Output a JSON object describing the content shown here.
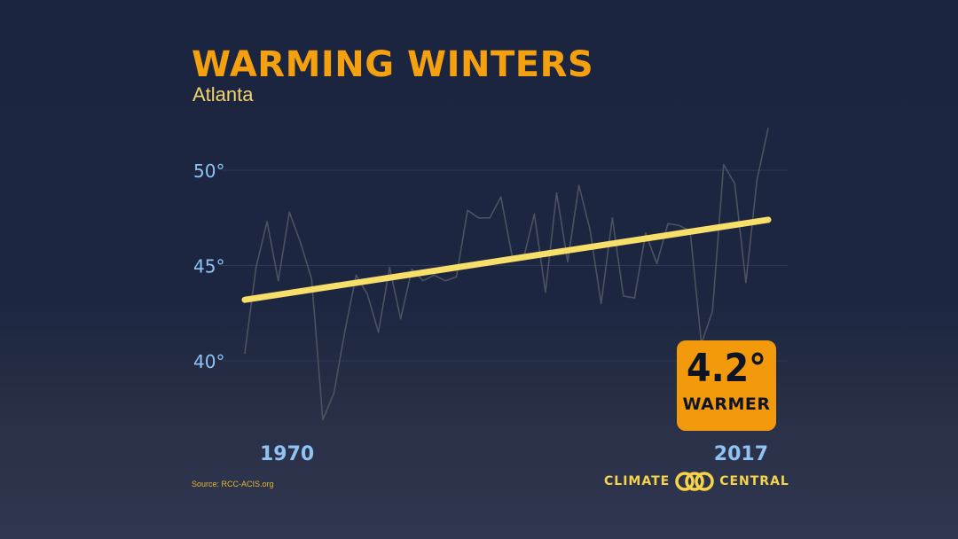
{
  "header": {
    "title": "WARMING WINTERS",
    "subtitle": "Atlanta"
  },
  "badge": {
    "value": "4.2°",
    "label": "WARMER"
  },
  "footer": {
    "source": "Source: RCC-ACIS.org",
    "logo_left": "CLIMATE",
    "logo_right": "CENTRAL"
  },
  "colors": {
    "title": "#f5a00f",
    "subtitle": "#f3d36b",
    "trend": "#f7df6a",
    "series": "#4d5260",
    "axis_labels": "#8fc3f4",
    "badge": "#f29a0c",
    "gridline": "#2c3958"
  },
  "chart_data": {
    "type": "line",
    "title": "WARMING WINTERS",
    "subtitle": "Atlanta",
    "xlabel": "",
    "ylabel": "",
    "xlim": [
      1970,
      2017
    ],
    "ylim": [
      35,
      53
    ],
    "x_tick_labels": [
      {
        "value": 1970,
        "label": "1970"
      },
      {
        "value": 2017,
        "label": "2017"
      }
    ],
    "y_tick_labels": [
      {
        "value": 40,
        "label": "40°"
      },
      {
        "value": 45,
        "label": "45°"
      },
      {
        "value": 50,
        "label": "50°"
      }
    ],
    "grid": true,
    "series": [
      {
        "role": "annual",
        "x": [
          1970,
          1971,
          1972,
          1973,
          1974,
          1975,
          1976,
          1977,
          1978,
          1979,
          1980,
          1981,
          1982,
          1983,
          1984,
          1985,
          1986,
          1987,
          1988,
          1989,
          1990,
          1991,
          1992,
          1993,
          1994,
          1995,
          1996,
          1997,
          1998,
          1999,
          2000,
          2001,
          2002,
          2003,
          2004,
          2005,
          2006,
          2007,
          2008,
          2009,
          2010,
          2011,
          2012,
          2013,
          2014,
          2015,
          2016,
          2017
        ],
        "values": [
          40.4,
          44.9,
          47.3,
          44.2,
          47.8,
          46.2,
          44.3,
          36.9,
          38.3,
          41.6,
          44.5,
          43.5,
          41.5,
          44.9,
          42.2,
          44.8,
          44.2,
          44.5,
          44.2,
          44.4,
          47.9,
          47.5,
          47.5,
          48.6,
          45.5,
          45.3,
          47.7,
          43.6,
          48.8,
          45.2,
          49.2,
          46.9,
          43.0,
          47.5,
          43.4,
          43.3,
          46.7,
          45.1,
          47.2,
          47.1,
          46.8,
          40.9,
          42.6,
          50.3,
          49.3,
          44.1,
          49.5,
          52.2
        ]
      },
      {
        "role": "trend",
        "x": [
          1970,
          2017
        ],
        "values": [
          43.2,
          47.4
        ]
      }
    ]
  }
}
